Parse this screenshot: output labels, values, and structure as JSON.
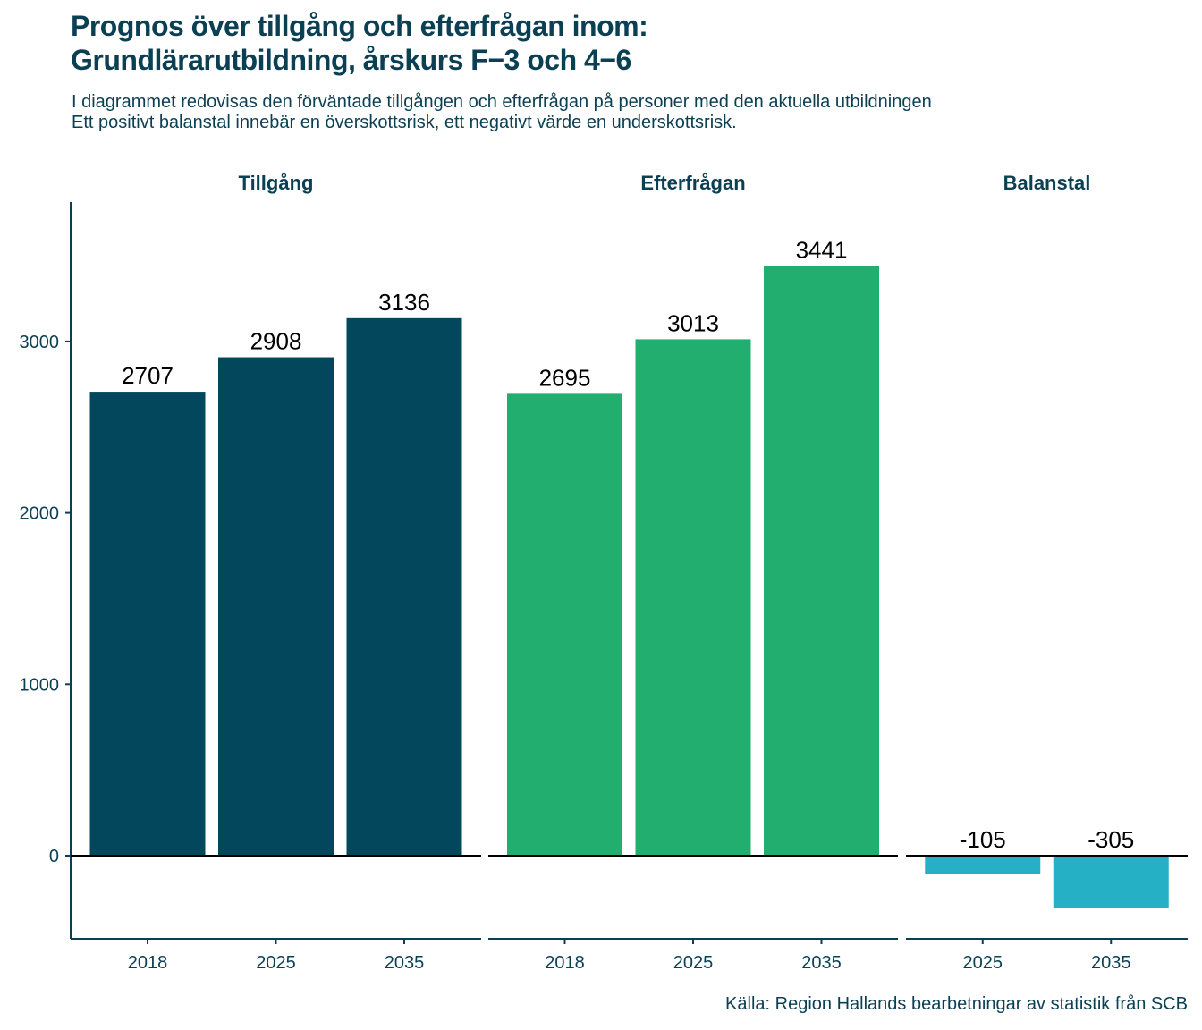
{
  "title_line1": "Prognos över tillgång och efterfrågan inom:",
  "title_line2": "Grundlärarutbildning, årskurs F−3 och 4−6",
  "subtitle_line1": "I diagrammet redovisas den förväntade tillgången och efterfrågan på personer med den aktuella utbildningen",
  "subtitle_line2": "Ett positivt balanstal innebär en överskottsrisk, ett negativt värde en underskottsrisk.",
  "caption": "Källa: Region Hallands bearbetningar av statistik från SCB",
  "chart_data": {
    "type": "bar",
    "ylim": [
      -480,
      3790
    ],
    "yticks": [
      0,
      1000,
      2000,
      3000
    ],
    "grid": false,
    "legend": "none",
    "panels": [
      {
        "name": "Tillgång",
        "color": "#03475d",
        "categories": [
          "2018",
          "2025",
          "2035"
        ],
        "values": [
          2707,
          2908,
          3136
        ]
      },
      {
        "name": "Efterfrågan",
        "color": "#22ae6e",
        "categories": [
          "2018",
          "2025",
          "2035"
        ],
        "values": [
          2695,
          3013,
          3441
        ]
      },
      {
        "name": "Balanstal",
        "color": "#26b0c6",
        "categories": [
          "2025",
          "2035"
        ],
        "values": [
          -105,
          -305
        ]
      }
    ]
  }
}
